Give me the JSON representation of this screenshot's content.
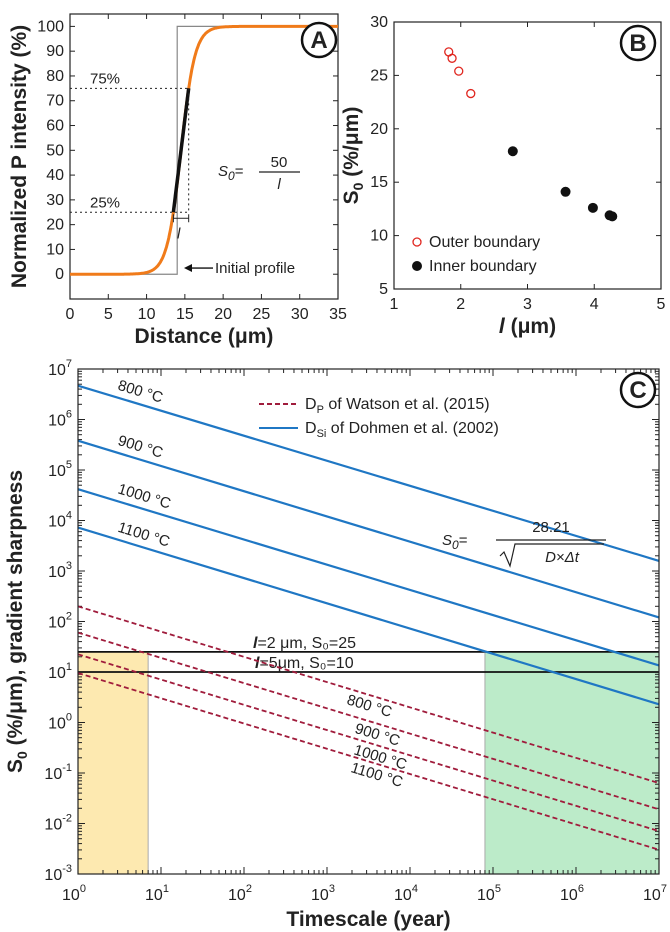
{
  "colors": {
    "orange": "#f07b1a",
    "blue": "#1f77c4",
    "darkred": "#a01c3c",
    "outer_red": "#e0261f",
    "inner_black": "#111111",
    "yellow_band": "#fde9b0",
    "green_band": "#bcebc9",
    "gray_text": "#777777"
  },
  "chart_data": [
    {
      "panel": "A",
      "type": "line",
      "xlabel": "Distance (μm)",
      "ylabel": "Normalized P intensity (%)",
      "xlim": [
        0,
        35
      ],
      "ylim": [
        -10,
        105
      ],
      "xticks": [
        "0",
        "5",
        "10",
        "15",
        "20",
        "25",
        "30",
        "35"
      ],
      "yticks": [
        "0",
        "10",
        "20",
        "30",
        "40",
        "50",
        "60",
        "70",
        "80",
        "90",
        "100"
      ],
      "series": [
        {
          "kind": "sigmoid",
          "center": 14.5,
          "l": 2,
          "color": "orange"
        },
        {
          "kind": "step",
          "at": 14,
          "label": "Initial profile",
          "color": "gray"
        }
      ],
      "reference_levels": [
        {
          "y": 75,
          "label": "75%"
        },
        {
          "y": 25,
          "label": "25%"
        }
      ],
      "width_symbol": "l",
      "formula": {
        "lhs": "S",
        "lhs_sub": "0",
        "eq": "=",
        "num": "50",
        "den": "l"
      },
      "initial_profile_label": "Initial profile"
    },
    {
      "panel": "B",
      "type": "scatter",
      "xlabel_sym": "l",
      "xlabel_rest": " (μm)",
      "ylabel_main": "S",
      "ylabel_sub": "0",
      "ylabel_rest": " (%/μm)",
      "xlim": [
        1,
        5
      ],
      "ylim": [
        5,
        30
      ],
      "xticks": [
        "1",
        "2",
        "3",
        "4",
        "5"
      ],
      "yticks": [
        "5",
        "10",
        "15",
        "20",
        "25",
        "30"
      ],
      "series": [
        {
          "name": "Outer boundary",
          "marker": "open-circle",
          "color": "outer_red",
          "points": [
            [
              1.82,
              27.2
            ],
            [
              1.87,
              26.6
            ],
            [
              1.97,
              25.4
            ],
            [
              2.15,
              23.3
            ]
          ]
        },
        {
          "name": "Inner boundary",
          "marker": "filled-circle",
          "color": "inner_black",
          "points": [
            [
              2.78,
              17.9
            ],
            [
              3.57,
              14.1
            ],
            [
              3.98,
              12.6
            ],
            [
              4.23,
              11.9
            ],
            [
              4.27,
              11.8
            ]
          ]
        }
      ]
    },
    {
      "panel": "C",
      "type": "line",
      "xlabel": "Timescale (year)",
      "ylabel_main": "S",
      "ylabel_sub": "0",
      "ylabel_rest": " (%/μm), gradient sharpness",
      "xscale": "log",
      "yscale": "log",
      "xlim_exp": [
        0,
        7
      ],
      "ylim_exp": [
        -3,
        7
      ],
      "tick_base": "10",
      "xtick_exps": [
        "0",
        "1",
        "2",
        "3",
        "4",
        "5",
        "6",
        "7"
      ],
      "ytick_exps": [
        "-3",
        "-2",
        "-1",
        "0",
        "1",
        "2",
        "3",
        "4",
        "5",
        "6",
        "7"
      ],
      "legend": [
        {
          "style": "dashed",
          "color": "darkred",
          "pre": "D",
          "sub": "P",
          "post": " of Watson et al. (2015)"
        },
        {
          "style": "solid",
          "color": "blue",
          "pre": "D",
          "sub": "Si",
          "post": " of Dohmen et al. (2002)"
        }
      ],
      "series": [
        {
          "group": "Dohmen (Si)",
          "style": "solid",
          "label": "800 °C",
          "x_exp": [
            0,
            7
          ],
          "y_exp": [
            6.67,
            3.2
          ]
        },
        {
          "group": "Dohmen (Si)",
          "style": "solid",
          "label": "900 °C",
          "x_exp": [
            0,
            7
          ],
          "y_exp": [
            5.58,
            2.08
          ]
        },
        {
          "group": "Dohmen (Si)",
          "style": "solid",
          "label": "1000 °C",
          "x_exp": [
            0,
            7
          ],
          "y_exp": [
            4.62,
            1.13
          ]
        },
        {
          "group": "Dohmen (Si)",
          "style": "solid",
          "label": "1100 °C",
          "x_exp": [
            0,
            7
          ],
          "y_exp": [
            3.86,
            0.36
          ]
        },
        {
          "group": "Watson (P)",
          "style": "dashed",
          "label": "800 °C",
          "x_exp": [
            0,
            7
          ],
          "y_exp": [
            2.3,
            -1.2
          ]
        },
        {
          "group": "Watson (P)",
          "style": "dashed",
          "label": "900 °C",
          "x_exp": [
            0,
            7
          ],
          "y_exp": [
            1.78,
            -1.72
          ]
        },
        {
          "group": "Watson (P)",
          "style": "dashed",
          "label": "1000 °C",
          "x_exp": [
            0,
            7
          ],
          "y_exp": [
            1.35,
            -2.15
          ]
        },
        {
          "group": "Watson (P)",
          "style": "dashed",
          "label": "1100 °C",
          "x_exp": [
            0,
            7
          ],
          "y_exp": [
            0.98,
            -2.52
          ]
        }
      ],
      "hlines": [
        {
          "y": 25,
          "sym": "l",
          "rest": "=2 μm, S₀=25"
        },
        {
          "y": 10,
          "sym": "l",
          "rest": "=5μm, S₀=10"
        }
      ],
      "bands": [
        {
          "x_from": 1,
          "x_to": 7,
          "y_to": 25,
          "color": "yellow_band"
        },
        {
          "x_from": 80000,
          "x_to": 10000000,
          "y_to": 25,
          "color": "green_band"
        }
      ],
      "formula": {
        "lhs": "S",
        "lhs_sub": "0",
        "eq": "=",
        "num": "28.21",
        "den": "D×Δt"
      }
    }
  ]
}
